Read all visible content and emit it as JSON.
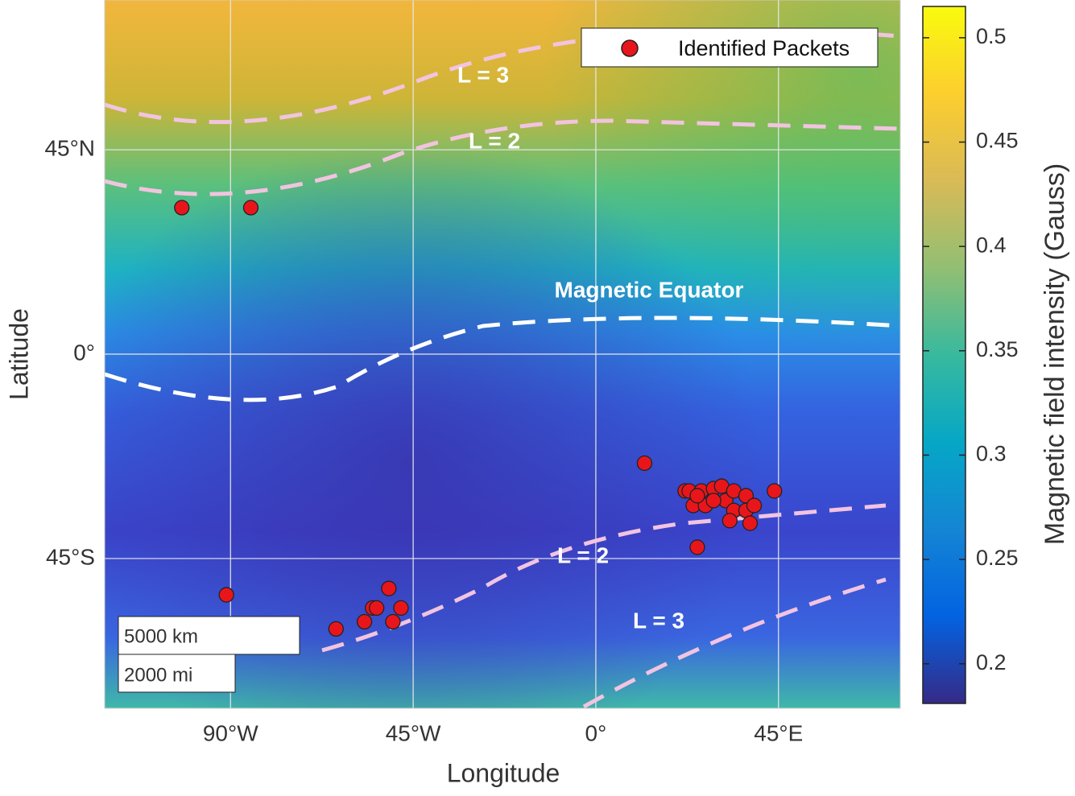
{
  "chart_data": {
    "type": "scatter",
    "projection": "mercator",
    "xlabel": "Longitude",
    "ylabel": "Latitude",
    "xlim": [
      -121,
      75
    ],
    "ylim": [
      -65.5,
      65.5
    ],
    "xticks": [
      {
        "value": -90,
        "label": "90°W"
      },
      {
        "value": -45,
        "label": "45°W"
      },
      {
        "value": 0,
        "label": "0°"
      },
      {
        "value": 45,
        "label": "45°E"
      }
    ],
    "yticks": [
      {
        "value": -45,
        "label": "45°S"
      },
      {
        "value": 0,
        "label": "0°"
      },
      {
        "value": 45,
        "label": "45°N"
      }
    ],
    "grid": true,
    "legend": "upper right",
    "series": [
      {
        "name": "Identified Packets",
        "color": "#e8161b",
        "x": [
          -102,
          -85,
          -91,
          -64,
          -57,
          -55,
          -54,
          -51,
          -50,
          -48,
          12,
          25,
          22,
          23,
          24,
          26,
          27,
          29,
          31,
          32,
          34,
          34,
          33,
          37,
          37,
          39,
          38,
          44,
          29,
          25
        ],
        "y": [
          34,
          34,
          -51,
          -56,
          -55,
          -53,
          -53,
          -50,
          -55,
          -53,
          -26,
          -43,
          -32,
          -32,
          -35,
          -32,
          -35,
          -31.5,
          -31,
          -34,
          -32,
          -36,
          -38,
          -33,
          -36,
          -35,
          -38.5,
          -32,
          -34,
          -33
        ]
      }
    ],
    "colorbar": {
      "label": "Magnetic field intensity (Gauss)",
      "clim": [
        0.181,
        0.515
      ],
      "ticks": [
        0.2,
        0.25,
        0.3,
        0.35,
        0.4,
        0.45,
        0.5
      ],
      "colormap": [
        "#352a87",
        "#0363e1",
        "#1485d4",
        "#06a7c6",
        "#38b99e",
        "#92bf73",
        "#d9ba56",
        "#fcce2e",
        "#f9fb0e"
      ]
    },
    "annotations": [
      "L = 3",
      "L = 2",
      "Magnetic Equator",
      "L = 2",
      "L = 3"
    ],
    "scale_bar": [
      "5000 km",
      "2000 mi"
    ]
  }
}
